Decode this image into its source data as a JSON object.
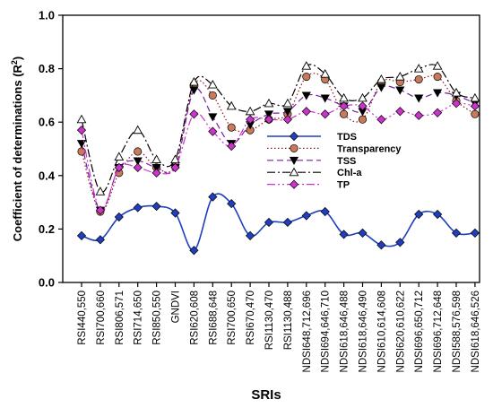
{
  "chart_data": {
    "type": "line",
    "xlabel": "SRIs",
    "ylabel": "Coefficient of determinations (R",
    "ylabel_sup": "2",
    "ylabel_close": ")",
    "ylim": [
      0.0,
      1.0
    ],
    "yticks": [
      "0.0",
      "0.2",
      "0.4",
      "0.6",
      "0.8",
      "1.0"
    ],
    "grid": false,
    "legend_position": "center-right",
    "categories": [
      "RSI440,550",
      "RSI700,660",
      "RSI806,571",
      "RSI714,650",
      "RSI850,550",
      "GNDVI",
      "RSI620,608",
      "RSI688,648",
      "RSI700,650",
      "RSI670,470",
      "RSI1130,470",
      "RSI1130,488",
      "NDSI648,712,696",
      "NDSI694,646,710",
      "NDSI618,646,488",
      "NDSI618,646,490",
      "NDSI610,614,608",
      "NDSI620,610,622",
      "NDSI696,650,712",
      "NDSI696,712,648",
      "NDSI588,576,598",
      "NDSI618,646,526"
    ],
    "series": [
      {
        "name": "TDS",
        "color": "#1f3fbf",
        "marker": "diamond-filled",
        "line": "solid",
        "values": [
          0.175,
          0.16,
          0.245,
          0.28,
          0.285,
          0.26,
          0.12,
          0.32,
          0.295,
          0.175,
          0.225,
          0.225,
          0.25,
          0.265,
          0.18,
          0.185,
          0.14,
          0.15,
          0.255,
          0.255,
          0.185,
          0.185
        ]
      },
      {
        "name": "Transparency",
        "color": "#8b1a1a",
        "marker": "circle-filled",
        "line": "dotted",
        "values": [
          0.49,
          0.265,
          0.41,
          0.49,
          0.43,
          0.44,
          0.74,
          0.7,
          0.58,
          0.57,
          0.61,
          0.63,
          0.77,
          0.76,
          0.63,
          0.61,
          0.75,
          0.75,
          0.76,
          0.77,
          0.68,
          0.63
        ]
      },
      {
        "name": "TSS",
        "color": "#7a1fa2",
        "marker": "triangle-down-filled",
        "line": "dashed",
        "values": [
          0.52,
          0.27,
          0.43,
          0.455,
          0.43,
          0.43,
          0.72,
          0.62,
          0.52,
          0.59,
          0.63,
          0.64,
          0.7,
          0.69,
          0.66,
          0.64,
          0.73,
          0.72,
          0.69,
          0.71,
          0.7,
          0.67
        ]
      },
      {
        "name": "Chl-a",
        "color": "#000000",
        "marker": "triangle-up-open",
        "line": "dashdot",
        "values": [
          0.61,
          0.34,
          0.47,
          0.57,
          0.46,
          0.46,
          0.75,
          0.74,
          0.66,
          0.64,
          0.67,
          0.67,
          0.81,
          0.78,
          0.69,
          0.69,
          0.76,
          0.77,
          0.8,
          0.81,
          0.71,
          0.69
        ]
      },
      {
        "name": "TP",
        "color": "#cc33cc",
        "marker": "diamond-filled",
        "line": "dashdotdot",
        "values": [
          0.57,
          0.27,
          0.43,
          0.43,
          0.41,
          0.43,
          0.63,
          0.565,
          0.51,
          0.61,
          0.61,
          0.61,
          0.64,
          0.63,
          0.66,
          0.66,
          0.61,
          0.64,
          0.625,
          0.635,
          0.67,
          0.66
        ]
      }
    ]
  }
}
